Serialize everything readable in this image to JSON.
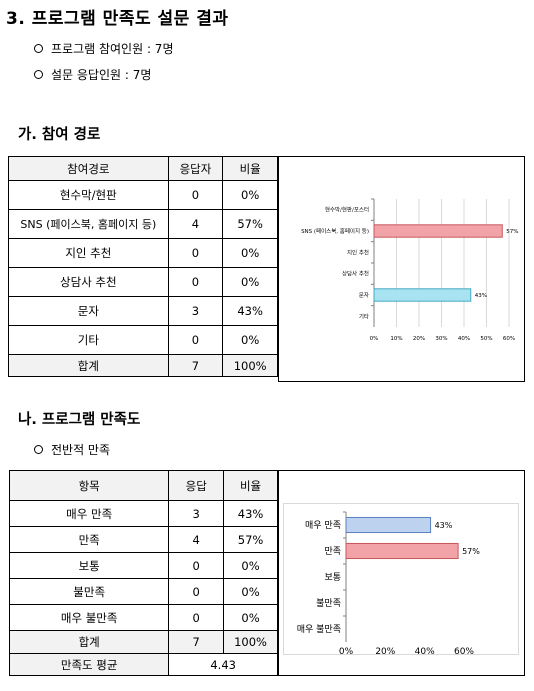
{
  "title": "3. 프로그램 만족도 설문 결과",
  "bullets": [
    "프로그램 참여인원 : 7명",
    "설문 응답인원 :  7명"
  ],
  "section_ga": {
    "heading": "가. 참여 경로",
    "table": {
      "headers": [
        "참여경로",
        "응답자",
        "비율"
      ],
      "rows": [
        [
          "현수막/현판",
          "0",
          "0%"
        ],
        [
          "SNS (페이스북, 홈페이지 등)",
          "4",
          "57%"
        ],
        [
          "지인 추천",
          "0",
          "0%"
        ],
        [
          "상담사 추천",
          "0",
          "0%"
        ],
        [
          "문자",
          "3",
          "43%"
        ],
        [
          "기타",
          "0",
          "0%"
        ]
      ],
      "total": [
        "합계",
        "7",
        "100%"
      ]
    }
  },
  "section_na": {
    "heading": "나. 프로그램 만족도",
    "sub_bullet": "전반적 만족",
    "table": {
      "headers": [
        "항목",
        "응답",
        "비율"
      ],
      "rows": [
        [
          "매우 만족",
          "3",
          "43%"
        ],
        [
          "만족",
          "4",
          "57%"
        ],
        [
          "보통",
          "0",
          "0%"
        ],
        [
          "불만족",
          "0",
          "0%"
        ],
        [
          "매우 불만족",
          "0",
          "0%"
        ]
      ],
      "total": [
        "합계",
        "7",
        "100%"
      ],
      "average_label": "만족도 평균",
      "average_value": "4.43"
    }
  },
  "colors": {
    "pink": "#f2a3a7",
    "pink_edge": "#c9555c",
    "cyan": "#a7e3f0",
    "cyan_edge": "#44a9c4",
    "blue": "#bcd2ef",
    "blue_edge": "#5a7fc0"
  },
  "chart_data": [
    {
      "type": "bar",
      "orientation": "horizontal",
      "categories": [
        "현수막/현판/포스터",
        "SNS (페이스북, 홈페이지 등)",
        "지인 추천",
        "상담사 추천",
        "문자",
        "기타"
      ],
      "values": [
        0,
        57,
        0,
        0,
        43,
        0
      ],
      "data_labels": [
        "",
        "57%",
        "",
        "",
        "43%",
        ""
      ],
      "bar_colors": [
        "",
        "pink",
        "",
        "",
        "cyan",
        ""
      ],
      "xlim": [
        0,
        60
      ],
      "xticks": [
        "0%",
        "10%",
        "20%",
        "30%",
        "40%",
        "50%",
        "60%"
      ],
      "grid": true
    },
    {
      "type": "bar",
      "orientation": "horizontal",
      "categories": [
        "매우 만족",
        "만족",
        "보통",
        "불만족",
        "매우 불만족"
      ],
      "values": [
        43,
        57,
        0,
        0,
        0
      ],
      "data_labels": [
        "43%",
        "57%",
        "",
        "",
        ""
      ],
      "bar_colors": [
        "blue",
        "pink",
        "",
        "",
        ""
      ],
      "xlim": [
        0,
        60
      ],
      "xticks": [
        "0%",
        "20%",
        "40%",
        "60%"
      ],
      "grid": false
    }
  ]
}
